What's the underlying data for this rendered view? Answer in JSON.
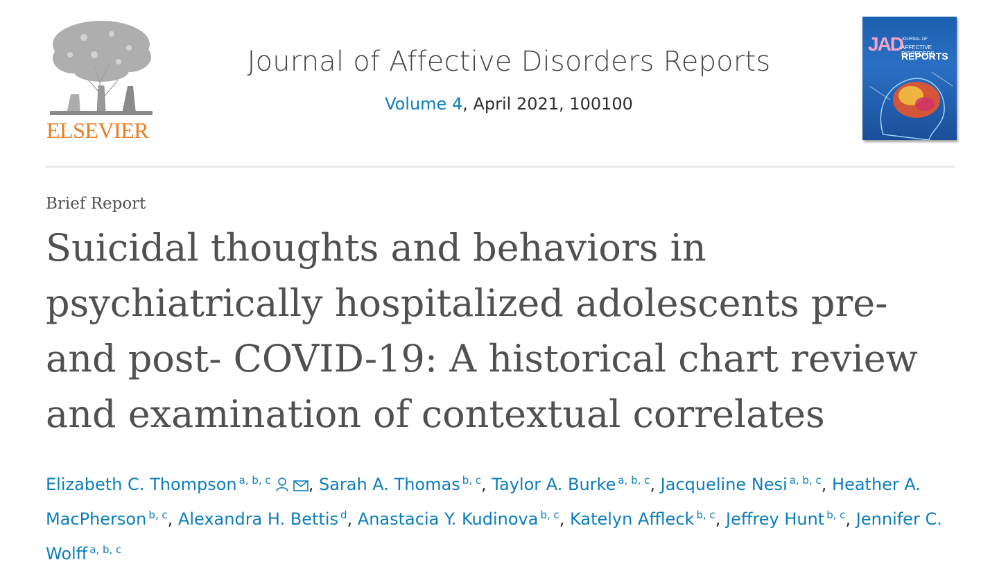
{
  "header": {
    "publisher": "ELSEVIER",
    "journal_title": "Journal of Affective Disorders Reports",
    "volume_link": "Volume 4",
    "issue_rest": ", April 2021, 100100",
    "cover": {
      "logo": "JAD",
      "text_top": "JOURNAL OF",
      "text_mid": "AFFECTIVE DISORDERS",
      "text_big": "REPORTS"
    }
  },
  "article": {
    "type": "Brief Report",
    "title": "Suicidal thoughts and behaviors in psychiatrically hospitalized adolescents pre- and post- COVID-19: A historical chart review and examination of contextual correlates"
  },
  "authors": [
    {
      "name": "Elizabeth C. Thompson",
      "aff": "a, b, c"
    },
    {
      "name": "Sarah A. Thomas",
      "aff": "b, c"
    },
    {
      "name": "Taylor A. Burke",
      "aff": "a, b, c"
    },
    {
      "name": "Jacqueline Nesi",
      "aff": "a, b, c"
    },
    {
      "name": "Heather A. MacPherson",
      "aff": "b, c"
    },
    {
      "name": "Alexandra H. Bettis",
      "aff": "d"
    },
    {
      "name": "Anastacia Y. Kudinova",
      "aff": "b, c"
    },
    {
      "name": "Katelyn Affleck",
      "aff": "b, c"
    },
    {
      "name": "Jeffrey Hunt",
      "aff": "b, c"
    },
    {
      "name": "Jennifer C. Wolff",
      "aff": "a, b, c"
    }
  ],
  "colors": {
    "link": "#0c7dbb",
    "publisher_orange": "#f07a20",
    "title_gray": "#505050"
  },
  "icons": [
    "elsevier-tree-logo",
    "person-icon",
    "mail-icon",
    "journal-cover"
  ]
}
